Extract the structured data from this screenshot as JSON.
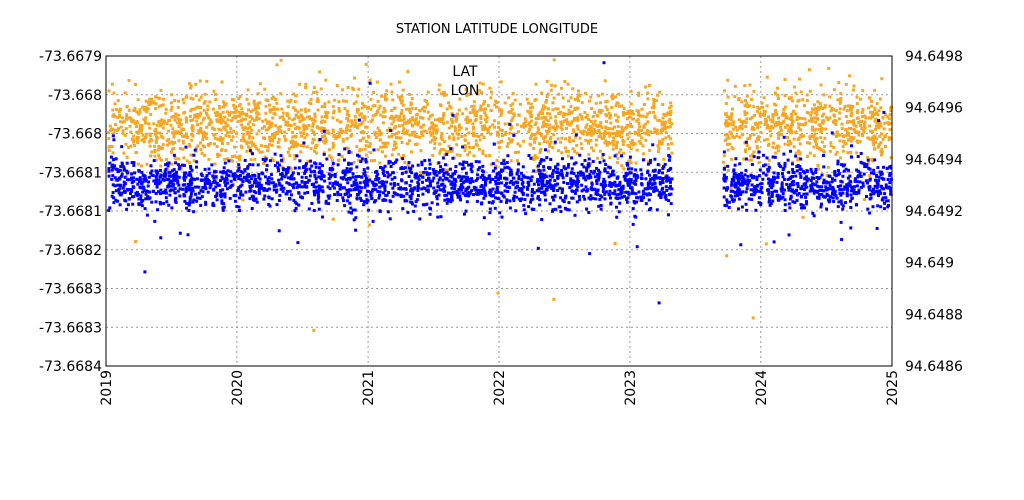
{
  "chart_data": {
    "type": "scatter",
    "title": "STATION LATITUDE LONGITUDE",
    "xlabel": "",
    "ylabel": "",
    "x_ticks": [
      "2019",
      "2020",
      "2021",
      "2022",
      "2023",
      "2024",
      "2025"
    ],
    "xlim": [
      "2019-01-01",
      "2025-01-01"
    ],
    "y_left": {
      "ticks": [
        "-73.6679",
        "-73.668",
        "-73.668",
        "-73.6681",
        "-73.6681",
        "-73.6682",
        "-73.6683",
        "-73.6683",
        "-73.6684"
      ],
      "ylim": [
        -73.6684,
        -73.6679
      ]
    },
    "y_right": {
      "ticks": [
        "94.6498",
        "94.6496",
        "94.6494",
        "94.6492",
        "94.649",
        "94.6488",
        "94.6486"
      ],
      "ylim": [
        94.6486,
        94.6498
      ]
    },
    "grid": true,
    "legend_position": "top-center",
    "data_gap": [
      "2023-04-25",
      "2023-09-15"
    ],
    "series": [
      {
        "name": "LAT",
        "axis": "left",
        "color": "#f5a623",
        "typical_value": -73.66801,
        "typical_spread": 3e-05,
        "outlier_values": [
          -73.66797,
          -73.66822,
          -73.66832,
          -73.6682,
          -73.66828,
          -73.66817,
          -73.66834,
          -73.66829
        ]
      },
      {
        "name": "LON",
        "axis": "right",
        "color": "#0000ff",
        "typical_value": 94.64931,
        "typical_spread": 5e-05,
        "outlier_values": [
          94.64978,
          94.6495,
          94.64885,
          94.64897,
          94.64912,
          94.6497
        ]
      }
    ]
  }
}
